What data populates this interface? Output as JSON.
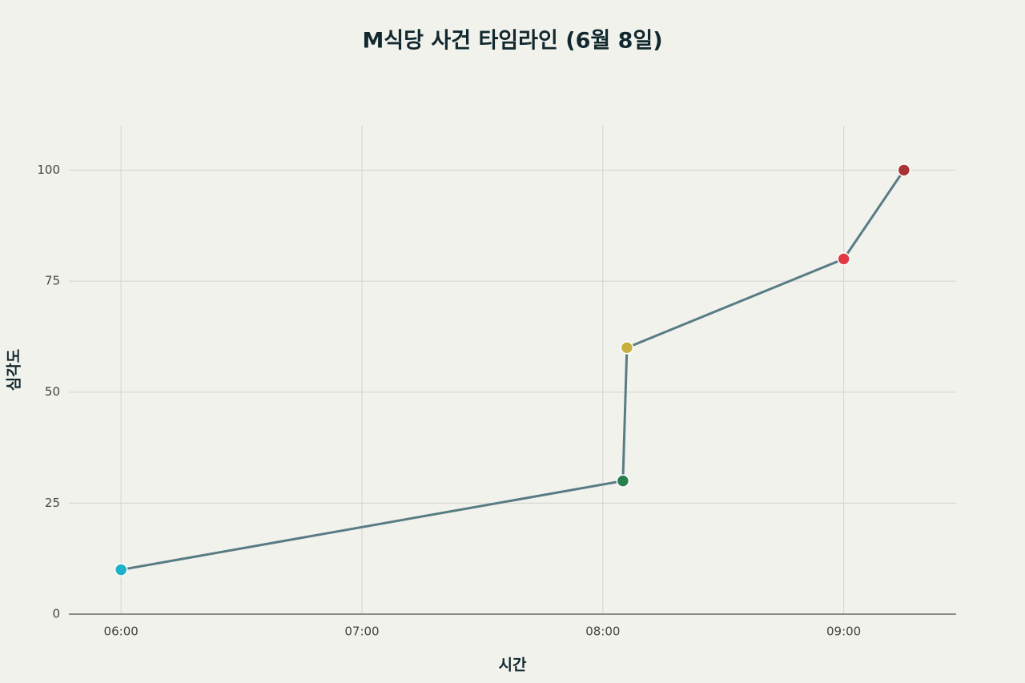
{
  "chart_data": {
    "type": "line",
    "title": "M식당 사건 타임라인 (6월 8일)",
    "x_label": "시간",
    "y_label": "심각도",
    "x": [
      "06:00",
      "08:05",
      "08:06",
      "09:00",
      "09:15"
    ],
    "values": [
      10,
      30,
      60,
      80,
      100
    ],
    "color": "#587c84",
    "marker_colors": [
      "#1eb1c8",
      "#2a7f4f",
      "#c8b040",
      "#e03a45",
      "#a83236"
    ],
    "xlim": [
      "05:47",
      "09:28"
    ],
    "xticks": [
      "06:00",
      "07:00",
      "08:00",
      "09:00"
    ],
    "ylim": [
      0,
      110
    ],
    "yticks": [
      0,
      25,
      50,
      75,
      100
    ],
    "grid": true
  }
}
